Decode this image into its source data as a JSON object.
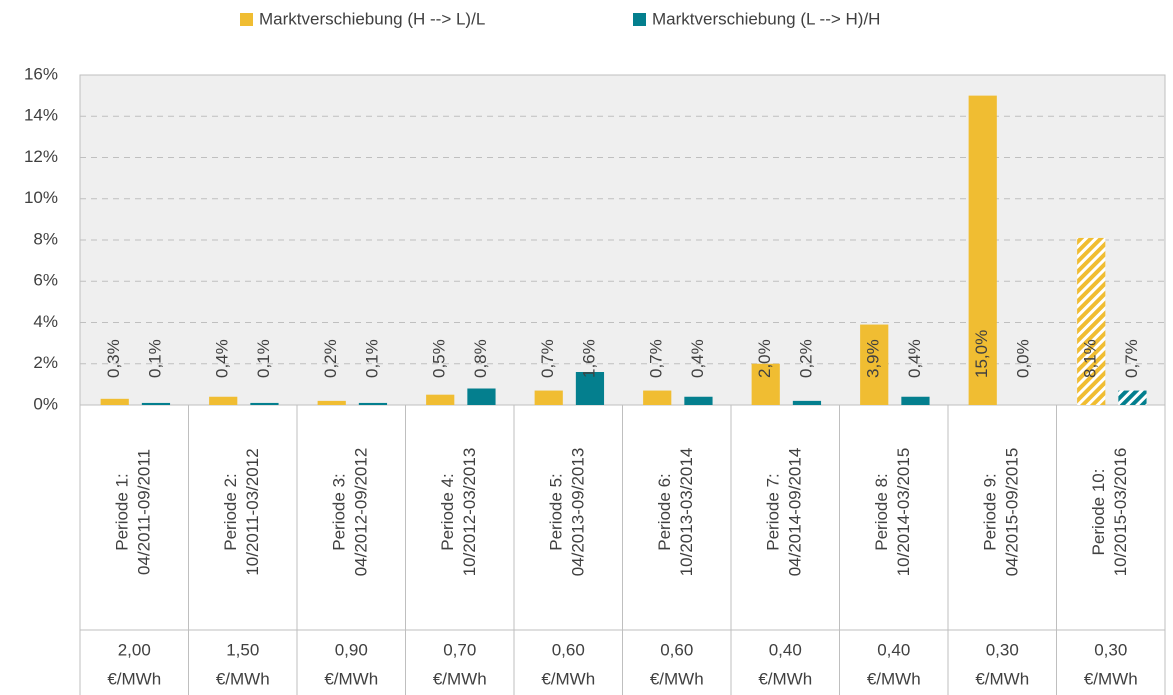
{
  "chart_data": {
    "type": "bar",
    "categories": [
      [
        "Periode 1:",
        "04/2011-09/2011"
      ],
      [
        "Periode 2:",
        "10/2011-03/2012"
      ],
      [
        "Periode 3:",
        "04/2012-09/2012"
      ],
      [
        "Periode 4:",
        "10/2012-03/2013"
      ],
      [
        "Periode 5:",
        "04/2013-09/2013"
      ],
      [
        "Periode 6:",
        "10/2013-03/2014"
      ],
      [
        "Periode 7:",
        "04/2014-09/2014"
      ],
      [
        "Periode 8:",
        "10/2014-03/2015"
      ],
      [
        "Periode 9:",
        "04/2015-09/2015"
      ],
      [
        "Periode 10:",
        "10/2015-03/2016"
      ]
    ],
    "prices": [
      "2,00",
      "1,50",
      "0,90",
      "0,70",
      "0,60",
      "0,60",
      "0,40",
      "0,40",
      "0,30",
      "0,30"
    ],
    "price_unit": "€/MWh",
    "series": [
      {
        "name": "Marktverschiebung (H --> L)/L",
        "color": "#f0bd32",
        "values": [
          0.3,
          0.4,
          0.2,
          0.5,
          0.7,
          0.7,
          2.0,
          3.9,
          15.0,
          8.1
        ],
        "value_labels": [
          "0,3%",
          "0,4%",
          "0,2%",
          "0,5%",
          "0,7%",
          "0,7%",
          "2,0%",
          "3,9%",
          "15,0%",
          "8,1%"
        ]
      },
      {
        "name": "Marktverschiebung (L --> H)/H",
        "color": "#047f8e",
        "values": [
          0.1,
          0.1,
          0.1,
          0.8,
          1.6,
          0.4,
          0.2,
          0.4,
          0.0,
          0.7
        ],
        "value_labels": [
          "0,1%",
          "0,1%",
          "0,1%",
          "0,8%",
          "1,6%",
          "0,4%",
          "0,2%",
          "0,4%",
          "0,0%",
          "0,7%"
        ]
      }
    ],
    "hatched": [
      false,
      false,
      false,
      false,
      false,
      false,
      false,
      false,
      false,
      true
    ],
    "ylim": [
      0,
      16
    ],
    "yticks": [
      {
        "value": 0,
        "label": "0%"
      },
      {
        "value": 2,
        "label": "2%"
      },
      {
        "value": 4,
        "label": "4%"
      },
      {
        "value": 6,
        "label": "6%"
      },
      {
        "value": 8,
        "label": "8%"
      },
      {
        "value": 10,
        "label": "10%"
      },
      {
        "value": 12,
        "label": "12%"
      },
      {
        "value": 14,
        "label": "14%"
      },
      {
        "value": 16,
        "label": "16%"
      }
    ],
    "grid": true
  }
}
